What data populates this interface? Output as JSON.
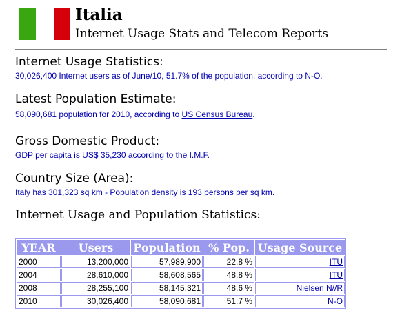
{
  "header": {
    "country": "Italia",
    "subtitle": "Internet Usage Stats and Telecom Reports",
    "flag_colors": {
      "green": "#3aa610",
      "white": "#ffffff",
      "red": "#d6000a"
    }
  },
  "internet": {
    "heading": "Internet Usage Statistics:",
    "text": "30,026,400 Internet users as of June/10, 51.7% of the population, according to N-O."
  },
  "population": {
    "heading": "Latest Population Estimate:",
    "text_before": "58,090,681 population for 2010, according to ",
    "link": "US Census Bureau",
    "text_after": "."
  },
  "gdp": {
    "heading": "Gross Domestic Product:",
    "text_before": "GDP per capita is US$ 35,230 according to the ",
    "link": "I.M.F",
    "text_after": "."
  },
  "size": {
    "heading": "Country Size (Area):",
    "text": "Italy has 301,323 sq km - Population density is 193 persons per sq km."
  },
  "table": {
    "heading": "Internet Usage and Population Statistics:",
    "columns": [
      "YEAR",
      "Users",
      "Population",
      "% Pop.",
      "Usage Source"
    ],
    "rows": [
      {
        "year": "2000",
        "users": "13,200,000",
        "population": "57,989,900",
        "pct": "22.8 %",
        "source": "ITU"
      },
      {
        "year": "2004",
        "users": "28,610,000",
        "population": "58,608,565",
        "pct": "48.8 %",
        "source": "ITU"
      },
      {
        "year": "2008",
        "users": "28,255,100",
        "population": "58,145,321",
        "pct": "48.6 %",
        "source": "Nielsen N//R"
      },
      {
        "year": "2010",
        "users": "30,026,400",
        "population": "58,090,681",
        "pct": "51.7 %",
        "source": "N-O"
      }
    ]
  }
}
